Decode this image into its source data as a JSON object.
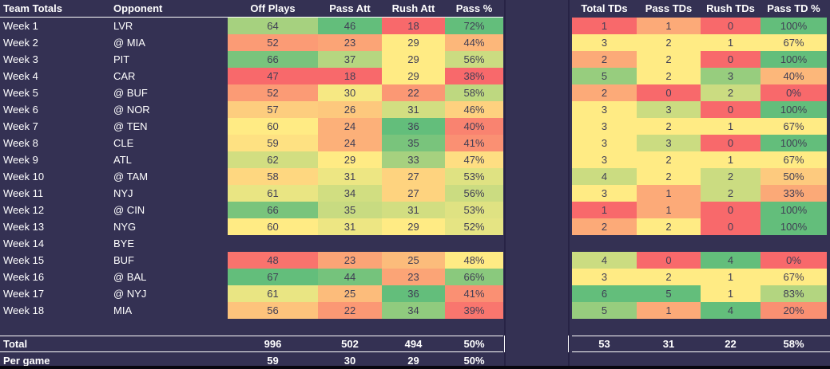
{
  "theme": {
    "background": "#343153",
    "scale_min_color": "#F8696B",
    "scale_mid_color": "#FFEB84",
    "scale_max_color": "#63BE7B",
    "cell_text_color": "#403e55",
    "header_text_color": "#ffffff",
    "divider_color": "#272345",
    "border_color": "#ffffff",
    "bottom_strip_color": "#08070f"
  },
  "left_table": {
    "headers": [
      "Team Totals",
      "Opponent",
      "Off Plays",
      "Pass Att",
      "Rush Att",
      "Pass %"
    ],
    "rows": [
      {
        "week": "Week 1",
        "opponent": "LVR",
        "values": [
          64,
          46,
          18,
          "72%"
        ]
      },
      {
        "week": "Week 2",
        "opponent": "@ MIA",
        "values": [
          52,
          23,
          29,
          "44%"
        ]
      },
      {
        "week": "Week 3",
        "opponent": "PIT",
        "values": [
          66,
          37,
          29,
          "56%"
        ]
      },
      {
        "week": "Week 4",
        "opponent": "CAR",
        "values": [
          47,
          18,
          29,
          "38%"
        ]
      },
      {
        "week": "Week 5",
        "opponent": "@ BUF",
        "values": [
          52,
          30,
          22,
          "58%"
        ]
      },
      {
        "week": "Week 6",
        "opponent": "@ NOR",
        "values": [
          57,
          26,
          31,
          "46%"
        ]
      },
      {
        "week": "Week 7",
        "opponent": "@ TEN",
        "values": [
          60,
          24,
          36,
          "40%"
        ]
      },
      {
        "week": "Week 8",
        "opponent": "CLE",
        "values": [
          59,
          24,
          35,
          "41%"
        ]
      },
      {
        "week": "Week 9",
        "opponent": "ATL",
        "values": [
          62,
          29,
          33,
          "47%"
        ]
      },
      {
        "week": "Week 10",
        "opponent": "@ TAM",
        "values": [
          58,
          31,
          27,
          "53%"
        ]
      },
      {
        "week": "Week 11",
        "opponent": "NYJ",
        "values": [
          61,
          34,
          27,
          "56%"
        ]
      },
      {
        "week": "Week 12",
        "opponent": "@ CIN",
        "values": [
          66,
          35,
          31,
          "53%"
        ]
      },
      {
        "week": "Week 13",
        "opponent": "NYG",
        "values": [
          60,
          31,
          29,
          "52%"
        ]
      },
      {
        "week": "Week 14",
        "opponent": "BYE",
        "values": [
          null,
          null,
          null,
          null
        ]
      },
      {
        "week": "Week 15",
        "opponent": "BUF",
        "values": [
          48,
          23,
          25,
          "48%"
        ]
      },
      {
        "week": "Week 16",
        "opponent": "@ BAL",
        "values": [
          67,
          44,
          23,
          "66%"
        ]
      },
      {
        "week": "Week 17",
        "opponent": "@ NYJ",
        "values": [
          61,
          25,
          36,
          "41%"
        ]
      },
      {
        "week": "Week 18",
        "opponent": "MIA",
        "values": [
          56,
          22,
          34,
          "39%"
        ]
      }
    ],
    "total": {
      "label": "Total",
      "values": [
        "996",
        "502",
        "494",
        "50%"
      ]
    },
    "per_game": {
      "label": "Per game",
      "values": [
        "59",
        "30",
        "29",
        "50%"
      ]
    }
  },
  "right_table": {
    "headers": [
      "Total TDs",
      "Pass TDs",
      "Rush TDs",
      "Pass TD %"
    ],
    "rows": [
      {
        "week": "Week 1",
        "values": [
          1,
          1,
          0,
          "100%"
        ]
      },
      {
        "week": "Week 2",
        "values": [
          3,
          2,
          1,
          "67%"
        ]
      },
      {
        "week": "Week 3",
        "values": [
          2,
          2,
          0,
          "100%"
        ]
      },
      {
        "week": "Week 4",
        "values": [
          5,
          2,
          3,
          "40%"
        ]
      },
      {
        "week": "Week 5",
        "values": [
          2,
          0,
          2,
          "0%"
        ]
      },
      {
        "week": "Week 6",
        "values": [
          3,
          3,
          0,
          "100%"
        ]
      },
      {
        "week": "Week 7",
        "values": [
          3,
          2,
          1,
          "67%"
        ]
      },
      {
        "week": "Week 8",
        "values": [
          3,
          3,
          0,
          "100%"
        ]
      },
      {
        "week": "Week 9",
        "values": [
          3,
          2,
          1,
          "67%"
        ]
      },
      {
        "week": "Week 10",
        "values": [
          4,
          2,
          2,
          "50%"
        ]
      },
      {
        "week": "Week 11",
        "values": [
          3,
          1,
          2,
          "33%"
        ]
      },
      {
        "week": "Week 12",
        "values": [
          1,
          1,
          0,
          "100%"
        ]
      },
      {
        "week": "Week 13",
        "values": [
          2,
          2,
          0,
          "100%"
        ]
      },
      {
        "week": "Week 14",
        "values": [
          null,
          null,
          null,
          null
        ]
      },
      {
        "week": "Week 15",
        "values": [
          4,
          0,
          4,
          "0%"
        ]
      },
      {
        "week": "Week 16",
        "values": [
          3,
          2,
          1,
          "67%"
        ]
      },
      {
        "week": "Week 17",
        "values": [
          6,
          5,
          1,
          "83%"
        ]
      },
      {
        "week": "Week 18",
        "values": [
          5,
          1,
          4,
          "20%"
        ]
      }
    ],
    "total": {
      "values": [
        "53",
        "31",
        "22",
        "58%"
      ]
    }
  }
}
